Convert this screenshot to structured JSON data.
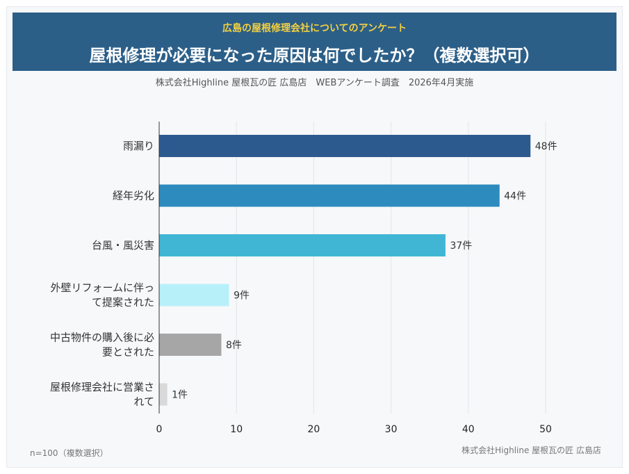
{
  "header": {
    "subtitle": "広島の屋根修理会社についてのアンケート",
    "title": "屋根修理が必要になった原因は何でしたか？（複数選択可）"
  },
  "survey_info": "株式会社Highline 屋根瓦の匠 広島店　WEBアンケート調査　2026年4月実施",
  "footer": {
    "sample_note": "n=100（複数選択）",
    "credit": "株式会社Highline 屋根瓦の匠 広島店"
  },
  "chart_data": {
    "type": "bar",
    "orientation": "horizontal",
    "categories": [
      [
        "雨漏り"
      ],
      [
        "経年劣化"
      ],
      [
        "台風・風災害"
      ],
      [
        "外壁リフォームに伴っ",
        "て提案された"
      ],
      [
        "中古物件の購入後に必",
        "要とされた"
      ],
      [
        "屋根修理会社に営業さ",
        "れて"
      ]
    ],
    "values": [
      48,
      44,
      37,
      9,
      8,
      1
    ],
    "value_labels": [
      "48件",
      "44件",
      "37件",
      "9件",
      "8件",
      "1件"
    ],
    "colors": [
      "#2c5a8f",
      "#2e8bbd",
      "#40b6d4",
      "#b8f0fa",
      "#a6a6a6",
      "#d9d9d9"
    ],
    "xlim": [
      0,
      50
    ],
    "xticks": [
      0,
      10,
      20,
      30,
      40,
      50
    ],
    "grid": true
  }
}
